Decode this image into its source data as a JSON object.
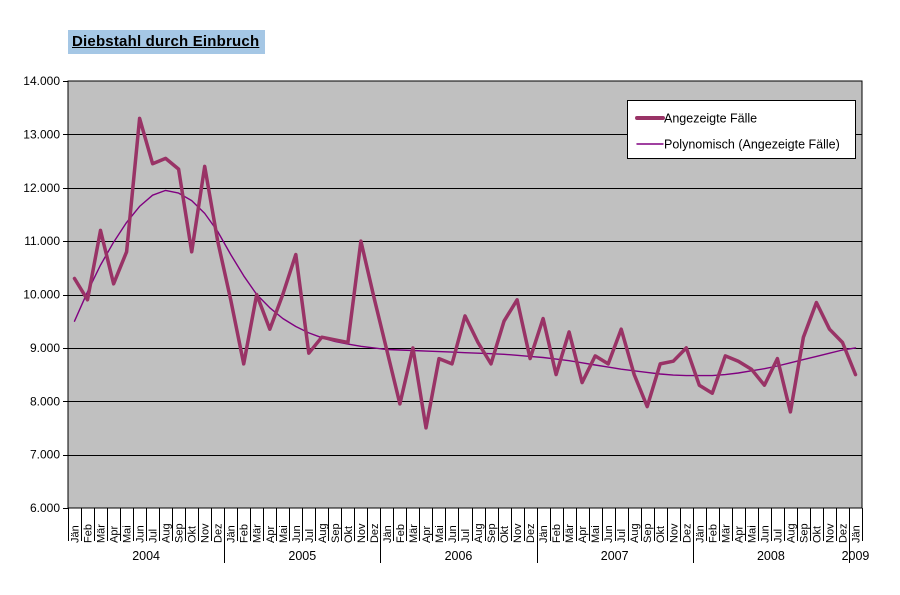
{
  "header": {
    "title": "Diebstahl durch Einbruch",
    "highlight_color": "#A5C7E5"
  },
  "legend": {
    "items": [
      {
        "label": "Angezeigte Fälle",
        "color": "#993366",
        "line_width": 4
      },
      {
        "label": "Polynomisch (Angezeigte Fälle)",
        "color": "#800080",
        "line_width": 1.4
      }
    ]
  },
  "axis": {
    "y_labels": [
      "14.000",
      "13.000",
      "12.000",
      "11.000",
      "10.000",
      "9.000",
      "8.000",
      "7.000",
      "6.000"
    ]
  },
  "colors": {
    "plot_background": "#C0C0C0",
    "gridline": "#000000",
    "series": "#993366",
    "trendline": "#800080"
  },
  "chart_data": {
    "type": "line",
    "title": "Diebstahl durch Einbruch",
    "ylim": [
      6000,
      14000
    ],
    "ytick_step": 1000,
    "grid": true,
    "legend_position": "top-right",
    "categories": [
      "Jän",
      "Feb",
      "Mär",
      "Apr",
      "Mai",
      "Jun",
      "Jul",
      "Aug",
      "Sep",
      "Okt",
      "Nov",
      "Dez",
      "Jän",
      "Feb",
      "Mär",
      "Apr",
      "Mai",
      "Jun",
      "Jul",
      "Aug",
      "Sep",
      "Okt",
      "Nov",
      "Dez",
      "Jän",
      "Feb",
      "Mär",
      "Apr",
      "Mai",
      "Jun",
      "Jul",
      "Aug",
      "Sep",
      "Okt",
      "Nov",
      "Dez",
      "Jän",
      "Feb",
      "Mär",
      "Apr",
      "Mai",
      "Jun",
      "Jul",
      "Aug",
      "Sep",
      "Okt",
      "Nov",
      "Dez",
      "Jän",
      "Feb",
      "Mär",
      "Apr",
      "Mai",
      "Jun",
      "Jul",
      "Aug",
      "Sep",
      "Okt",
      "Nov",
      "Dez",
      "Jän"
    ],
    "years": [
      {
        "label": "2004",
        "span": 12
      },
      {
        "label": "2005",
        "span": 12
      },
      {
        "label": "2006",
        "span": 12
      },
      {
        "label": "2007",
        "span": 12
      },
      {
        "label": "2008",
        "span": 12
      },
      {
        "label": "2009",
        "span": 1
      }
    ],
    "series": [
      {
        "name": "Angezeigte Fälle",
        "color": "#993366",
        "width": 3.5,
        "values": [
          10300,
          9900,
          11200,
          10200,
          10800,
          13300,
          12450,
          12550,
          12350,
          10800,
          12400,
          11000,
          9900,
          8700,
          10000,
          9350,
          10000,
          10750,
          8900,
          9200,
          9150,
          9100,
          11000,
          9950,
          8950,
          7950,
          9000,
          7500,
          8800,
          8700,
          9600,
          9100,
          8700,
          9500,
          9900,
          8800,
          9550,
          8500,
          9300,
          8350,
          8850,
          8700,
          9350,
          8500,
          7900,
          8700,
          8750,
          9000,
          8300,
          8150,
          8850,
          8750,
          8600,
          8300,
          8800,
          7800,
          9200,
          9850,
          9350,
          9100,
          8500
        ]
      },
      {
        "name": "Polynomisch (Angezeigte Fälle)",
        "color": "#800080",
        "width": 1.4,
        "values": [
          9500,
          10050,
          10550,
          10980,
          11350,
          11650,
          11860,
          11950,
          11900,
          11760,
          11520,
          11180,
          10750,
          10350,
          10000,
          9750,
          9550,
          9400,
          9280,
          9190,
          9120,
          9070,
          9030,
          9000,
          8970,
          8960,
          8950,
          8940,
          8930,
          8920,
          8910,
          8900,
          8890,
          8880,
          8860,
          8840,
          8820,
          8790,
          8760,
          8720,
          8680,
          8640,
          8600,
          8570,
          8540,
          8510,
          8490,
          8480,
          8480,
          8480,
          8500,
          8530,
          8570,
          8610,
          8660,
          8720,
          8780,
          8840,
          8900,
          8960,
          9000
        ]
      }
    ]
  }
}
